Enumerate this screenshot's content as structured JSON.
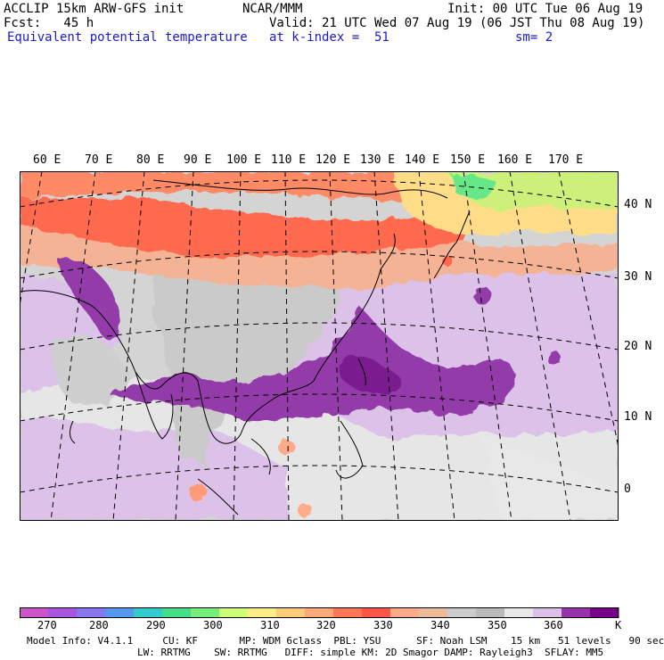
{
  "header": {
    "model": "ACCLIP 15km ARW-GFS init",
    "fcst": "Fcst:   45 h",
    "field": "Equivalent potential temperature",
    "center": "NCAR/MMM",
    "init": "Init: 00 UTC Tue 06 Aug 19",
    "valid": "Valid: 21 UTC Wed 07 Aug 19 (06 JST Thu 08 Aug 19)",
    "level": "at k-index =  51",
    "smooth": "sm= 2"
  },
  "map": {
    "lon_labels": [
      "60 E",
      "70 E",
      "80 E",
      "90 E",
      "100 E",
      "110 E",
      "120 E",
      "130 E",
      "140 E",
      "150 E",
      "160 E",
      "170 E"
    ],
    "lat_labels": [
      "40 N",
      "30 N",
      "20 N",
      "10 N",
      "0"
    ]
  },
  "colorbar": {
    "colors": [
      "#cc55cc",
      "#aa55dd",
      "#8877ee",
      "#5599ee",
      "#33cccc",
      "#44dd88",
      "#77ee77",
      "#ccff77",
      "#ffee88",
      "#ffcc77",
      "#ffaa77",
      "#ff7755",
      "#ff5544",
      "#ffaa88",
      "#eebb99",
      "#cccccc",
      "#bbbbbb",
      "#e8e8e8",
      "#dcc0e8",
      "#9933aa",
      "#770088"
    ],
    "labels": [
      "270",
      "280",
      "290",
      "300",
      "310",
      "320",
      "330",
      "340",
      "350",
      "360"
    ],
    "unit": "K"
  },
  "footer": {
    "line1": "Model Info: V4.1.1     CU: KF       MP: WDM 6class  PBL: YSU      SF: Noah LSM    15 km   51 levels   90 sec",
    "line2": "LW: RRTMG    SW: RRTMG   DIFF: simple KM: 2D Smagor DAMP: Rayleigh3  SFLAY: MM5"
  }
}
